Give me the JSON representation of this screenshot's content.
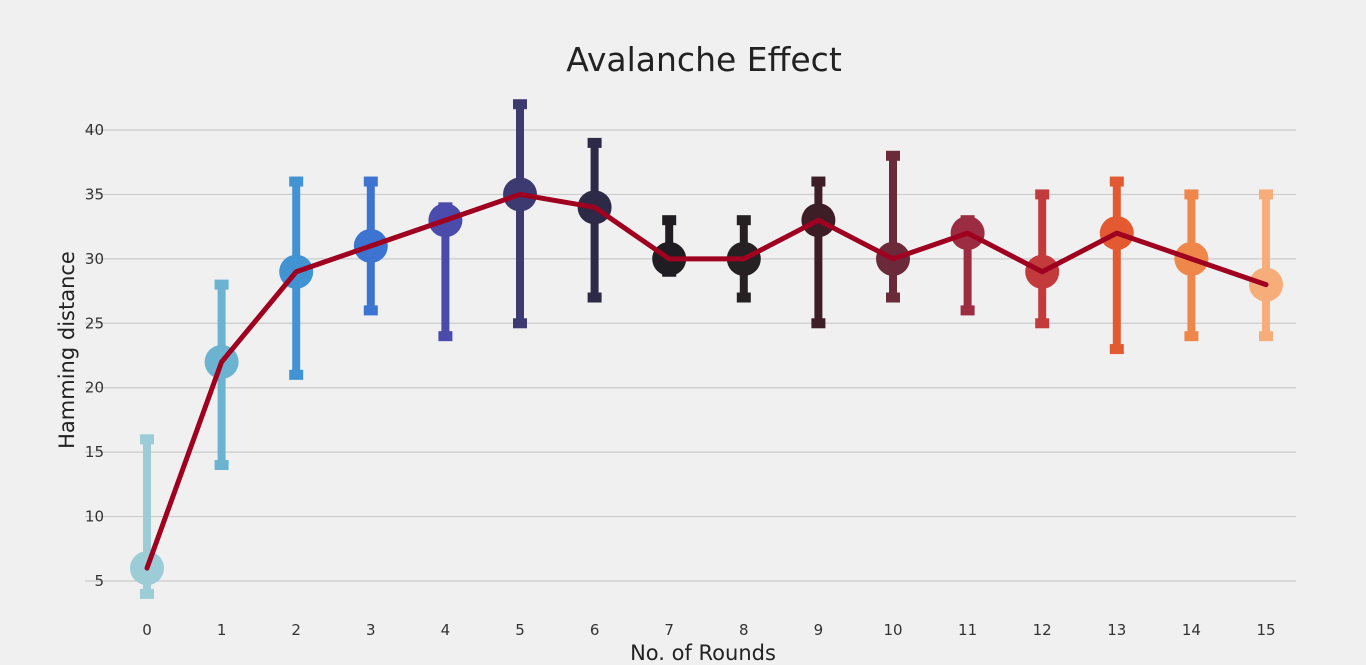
{
  "chart_data": {
    "type": "line",
    "title": "Avalanche Effect",
    "xlabel": "No. of Rounds",
    "ylabel": "Hamming distance",
    "x": [
      0,
      1,
      2,
      3,
      4,
      5,
      6,
      7,
      8,
      9,
      10,
      11,
      12,
      13,
      14,
      15
    ],
    "values": [
      6,
      22,
      29,
      31,
      33,
      35,
      34,
      30,
      30,
      33,
      30,
      32,
      29,
      32,
      30,
      28
    ],
    "error_low": [
      4,
      14,
      21,
      26,
      24,
      25,
      27,
      29,
      27,
      25,
      27,
      26,
      25,
      23,
      24,
      24
    ],
    "error_high": [
      16,
      28,
      36,
      36,
      34,
      42,
      39,
      33,
      33,
      36,
      38,
      33,
      35,
      36,
      35,
      35
    ],
    "point_colors": [
      "#9ccdd6",
      "#6bb3d0",
      "#4193d2",
      "#3d74d2",
      "#4a4bab",
      "#3d3a72",
      "#2c2a46",
      "#1f1c22",
      "#252022",
      "#3e1e26",
      "#6a2a3a",
      "#9c2c41",
      "#c23a3b",
      "#e35a32",
      "#f0874a",
      "#f7ad7a"
    ],
    "line_color": "#a00020",
    "y_ticks": [
      5,
      10,
      15,
      20,
      25,
      30,
      35,
      40
    ],
    "ylim": [
      3.2,
      42.8
    ],
    "grid": "horizontal"
  }
}
